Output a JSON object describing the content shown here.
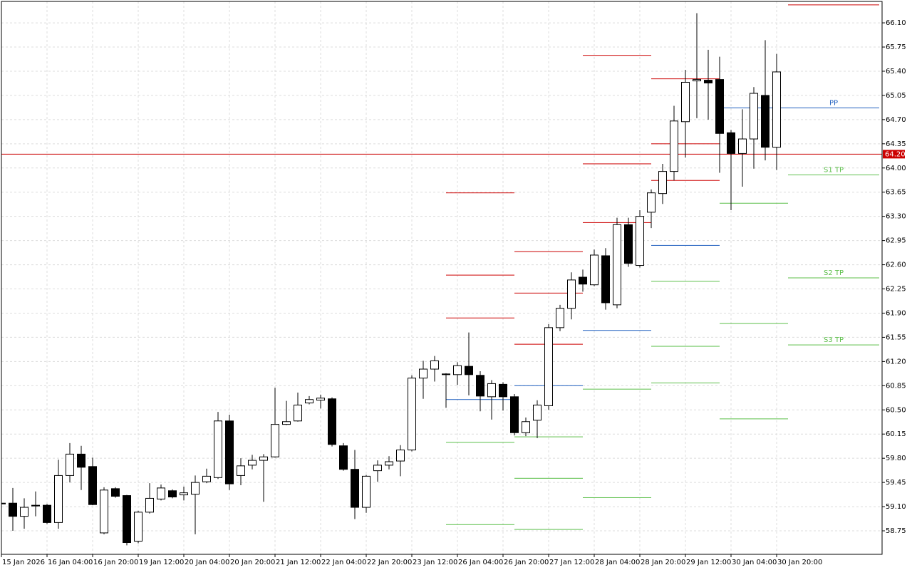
{
  "chart_data": {
    "type": "candlestick",
    "x": [
      "15 Jan 2026",
      null,
      null,
      null,
      "16 Jan 04:00",
      null,
      null,
      null,
      "16 Jan 20:00",
      null,
      null,
      null,
      "19 Jan 12:00",
      null,
      null,
      null,
      "20 Jan 04:00",
      null,
      null,
      null,
      "20 Jan 20:00",
      null,
      null,
      null,
      "21 Jan 12:00",
      null,
      null,
      null,
      "22 Jan 04:00",
      null,
      null,
      null,
      "22 Jan 20:00",
      null,
      null,
      null,
      "23 Jan 12:00",
      null,
      null,
      null,
      "26 Jan 04:00",
      null,
      null,
      null,
      "26 Jan 20:00",
      null,
      null,
      null,
      "27 Jan 12:00",
      null,
      null,
      null,
      "28 Jan 04:00",
      null,
      null,
      null,
      "28 Jan 20:00",
      null,
      null,
      null,
      "29 Jan 12:00",
      null,
      null,
      null,
      "30 Jan 04:00",
      null,
      null,
      null,
      "30 Jan 20:00",
      null,
      null,
      null,
      null,
      null,
      null,
      null,
      null,
      null
    ],
    "open": [
      59.15,
      59.15,
      58.96,
      59.11,
      59.12,
      58.87,
      59.55,
      59.86,
      59.68,
      58.72,
      59.36,
      59.26,
      58.6,
      59.02,
      59.21,
      59.33,
      59.27,
      59.28,
      59.46,
      59.52,
      60.34,
      59.55,
      59.7,
      59.77,
      59.82,
      60.29,
      60.34,
      60.6,
      60.64,
      60.66,
      59.98,
      59.64,
      59.09,
      59.62,
      59.7,
      59.76,
      59.92,
      60.96,
      61.09,
      61.02,
      61.01,
      61.13,
      61.0,
      60.69,
      60.87,
      60.69,
      60.17,
      60.35,
      60.56,
      61.69,
      61.97,
      62.42,
      62.31,
      62.73,
      62.02,
      63.18,
      62.59,
      63.36,
      63.63,
      63.95,
      64.67,
      65.26,
      65.27,
      65.28,
      64.51,
      64.21,
      64.42,
      65.05,
      64.3,
      null,
      null,
      null,
      null,
      null,
      null,
      null,
      null,
      null
    ],
    "high": [
      59.16,
      59.37,
      59.22,
      59.32,
      59.14,
      59.78,
      60.02,
      59.98,
      59.81,
      59.38,
      59.38,
      59.27,
      59.04,
      59.44,
      59.42,
      59.35,
      59.39,
      59.55,
      59.65,
      60.47,
      60.43,
      59.8,
      59.85,
      59.86,
      60.82,
      60.63,
      60.75,
      60.7,
      60.72,
      60.68,
      60.02,
      59.92,
      59.56,
      59.77,
      59.83,
      59.99,
      61.0,
      61.21,
      61.28,
      61.03,
      61.19,
      61.62,
      61.06,
      60.93,
      60.9,
      60.73,
      60.39,
      60.64,
      61.74,
      62.02,
      62.49,
      62.53,
      62.82,
      62.84,
      63.28,
      63.28,
      63.39,
      63.69,
      64.06,
      64.9,
      65.42,
      66.24,
      65.71,
      65.61,
      64.55,
      64.85,
      65.17,
      65.85,
      65.65,
      null,
      null,
      null,
      null,
      null,
      null,
      null,
      null,
      null
    ],
    "low": [
      59.13,
      58.75,
      58.78,
      58.96,
      58.85,
      58.78,
      59.45,
      59.34,
      59.12,
      58.7,
      59.23,
      58.54,
      58.57,
      59.0,
      59.19,
      59.22,
      59.19,
      58.7,
      59.44,
      59.5,
      59.34,
      59.41,
      59.64,
      59.17,
      59.81,
      60.28,
      60.33,
      60.58,
      60.52,
      59.97,
      59.62,
      58.92,
      59.01,
      59.46,
      59.64,
      59.54,
      59.9,
      60.66,
      60.91,
      60.53,
      60.86,
      60.71,
      60.48,
      60.36,
      60.49,
      60.13,
      60.12,
      60.09,
      60.5,
      61.64,
      61.81,
      62.21,
      62.29,
      61.95,
      61.97,
      62.57,
      62.56,
      63.13,
      63.48,
      63.82,
      64.15,
      64.72,
      64.7,
      63.93,
      63.39,
      63.73,
      63.99,
      64.11,
      63.97,
      null,
      null,
      null,
      null,
      null,
      null,
      null,
      null,
      null
    ],
    "close": [
      59.14,
      58.96,
      59.09,
      59.12,
      58.87,
      59.55,
      59.86,
      59.67,
      59.13,
      59.34,
      59.25,
      58.58,
      59.02,
      59.22,
      59.37,
      59.24,
      59.3,
      59.45,
      59.54,
      60.34,
      59.43,
      59.69,
      59.77,
      59.82,
      60.29,
      60.33,
      60.57,
      60.65,
      60.67,
      60.0,
      59.64,
      59.09,
      59.54,
      59.7,
      59.75,
      59.92,
      60.96,
      61.09,
      61.21,
      61.01,
      61.14,
      61.01,
      60.7,
      60.88,
      60.69,
      60.17,
      60.33,
      60.57,
      61.69,
      61.97,
      62.38,
      62.32,
      62.74,
      62.05,
      63.18,
      62.62,
      63.3,
      63.64,
      63.95,
      64.68,
      65.24,
      65.28,
      65.23,
      64.5,
      64.21,
      64.42,
      65.08,
      64.3,
      65.39,
      null,
      null,
      null,
      null,
      null,
      null,
      null,
      null,
      null
    ],
    "up_color": "#ffffff",
    "down_color": "#000000",
    "series": [
      {
        "color": "#cc0000",
        "values": [
          null,
          null,
          null,
          null,
          null,
          null,
          null,
          null,
          null,
          null,
          null,
          null,
          null,
          null,
          null,
          null,
          null,
          null,
          null,
          null,
          null,
          null,
          null,
          null,
          null,
          null,
          null,
          null,
          null,
          null,
          null,
          null,
          null,
          null,
          null,
          null,
          null,
          null,
          null,
          61.83,
          61.83,
          61.83,
          61.83,
          61.83,
          61.83,
          61.45,
          61.45,
          61.45,
          61.45,
          61.45,
          61.45,
          63.21,
          63.21,
          63.21,
          63.21,
          63.21,
          63.21,
          63.82,
          63.82,
          63.82,
          63.82,
          63.82,
          63.82,
          null,
          null,
          null,
          null,
          null,
          null,
          66.36,
          66.36,
          66.36,
          66.36,
          66.36,
          66.36,
          66.36,
          66.36,
          null
        ]
      },
      {
        "color": "#cc0000",
        "values": [
          null,
          null,
          null,
          null,
          null,
          null,
          null,
          null,
          null,
          null,
          null,
          null,
          null,
          null,
          null,
          null,
          null,
          null,
          null,
          null,
          null,
          null,
          null,
          null,
          null,
          null,
          null,
          null,
          null,
          null,
          null,
          null,
          null,
          null,
          null,
          null,
          null,
          null,
          null,
          62.45,
          62.45,
          62.45,
          62.45,
          62.45,
          62.45,
          62.19,
          62.19,
          62.19,
          62.19,
          62.19,
          62.19,
          64.06,
          64.06,
          64.06,
          64.06,
          64.06,
          64.06,
          64.35,
          64.35,
          64.35,
          64.35,
          64.35,
          64.35,
          null,
          null,
          null,
          null,
          null,
          null,
          null,
          null,
          null,
          null,
          null,
          null,
          null,
          null,
          null
        ]
      },
      {
        "color": "#cc0000",
        "values": [
          null,
          null,
          null,
          null,
          null,
          null,
          null,
          null,
          null,
          null,
          null,
          null,
          null,
          null,
          null,
          null,
          null,
          null,
          null,
          null,
          null,
          null,
          null,
          null,
          null,
          null,
          null,
          null,
          null,
          null,
          null,
          null,
          null,
          null,
          null,
          null,
          null,
          null,
          null,
          63.64,
          63.64,
          63.64,
          63.64,
          63.64,
          63.64,
          62.79,
          62.79,
          62.79,
          62.79,
          62.79,
          62.79,
          65.63,
          65.63,
          65.63,
          65.63,
          65.63,
          65.63,
          65.29,
          65.29,
          65.29,
          65.29,
          65.29,
          65.29,
          null,
          null,
          null,
          null,
          null,
          null,
          null,
          null,
          null,
          null,
          null,
          null,
          null,
          null,
          null
        ]
      },
      {
        "name": "PP",
        "color": "#1f5fbf",
        "values": [
          null,
          null,
          null,
          null,
          null,
          null,
          null,
          null,
          null,
          null,
          null,
          null,
          null,
          null,
          null,
          null,
          null,
          null,
          null,
          null,
          null,
          null,
          null,
          null,
          null,
          null,
          null,
          null,
          null,
          null,
          null,
          null,
          null,
          null,
          null,
          null,
          null,
          null,
          null,
          60.65,
          60.65,
          60.65,
          60.65,
          60.65,
          60.65,
          60.85,
          60.85,
          60.85,
          60.85,
          60.85,
          60.85,
          61.65,
          61.65,
          61.65,
          61.65,
          61.65,
          61.65,
          62.88,
          62.88,
          62.88,
          62.88,
          62.88,
          62.88,
          64.87,
          64.87,
          64.87,
          64.87,
          64.87,
          64.87,
          64.87,
          64.87,
          64.87,
          64.87,
          64.87,
          64.87,
          64.87,
          64.87,
          null
        ]
      },
      {
        "name": "S1 TP",
        "color": "#5cbf4a",
        "values": [
          null,
          null,
          null,
          null,
          null,
          null,
          null,
          null,
          null,
          null,
          null,
          null,
          null,
          null,
          null,
          null,
          null,
          null,
          null,
          null,
          null,
          null,
          null,
          null,
          null,
          null,
          null,
          null,
          null,
          null,
          null,
          null,
          null,
          null,
          null,
          null,
          null,
          null,
          null,
          60.03,
          60.03,
          60.03,
          60.03,
          60.03,
          60.03,
          60.11,
          60.11,
          60.11,
          60.11,
          60.11,
          60.11,
          60.8,
          60.8,
          60.8,
          60.8,
          60.8,
          60.8,
          62.36,
          62.36,
          62.36,
          62.36,
          62.36,
          62.36,
          63.49,
          63.49,
          63.49,
          63.49,
          63.49,
          63.49,
          63.9,
          63.9,
          63.9,
          63.9,
          63.9,
          63.9,
          63.9,
          63.9,
          null
        ]
      },
      {
        "name": "S2 TP",
        "color": "#5cbf4a",
        "values": [
          null,
          null,
          null,
          null,
          null,
          null,
          null,
          null,
          null,
          null,
          null,
          null,
          null,
          null,
          null,
          null,
          null,
          null,
          null,
          null,
          null,
          null,
          null,
          null,
          null,
          null,
          null,
          null,
          null,
          null,
          null,
          null,
          null,
          null,
          null,
          null,
          null,
          null,
          null,
          58.84,
          58.84,
          58.84,
          58.84,
          58.84,
          58.84,
          59.51,
          59.51,
          59.51,
          59.51,
          59.51,
          59.51,
          59.23,
          59.23,
          59.23,
          59.23,
          59.23,
          59.23,
          61.42,
          61.42,
          61.42,
          61.42,
          61.42,
          61.42,
          61.75,
          61.75,
          61.75,
          61.75,
          61.75,
          61.75,
          62.41,
          62.41,
          62.41,
          62.41,
          62.41,
          62.41,
          62.41,
          62.41,
          null
        ]
      },
      {
        "name": "S3 TP",
        "color": "#5cbf4a",
        "values": [
          null,
          null,
          null,
          null,
          null,
          null,
          null,
          null,
          null,
          null,
          null,
          null,
          null,
          null,
          null,
          null,
          null,
          null,
          null,
          null,
          null,
          null,
          null,
          null,
          null,
          null,
          null,
          null,
          null,
          null,
          null,
          null,
          null,
          null,
          null,
          null,
          null,
          null,
          null,
          null,
          null,
          null,
          null,
          null,
          null,
          58.77,
          58.77,
          58.77,
          58.77,
          58.77,
          58.77,
          null,
          null,
          null,
          null,
          null,
          null,
          60.89,
          60.89,
          60.89,
          60.89,
          60.89,
          60.89,
          60.37,
          60.37,
          60.37,
          60.37,
          60.37,
          60.37,
          61.44,
          61.44,
          61.44,
          61.44,
          61.44,
          61.44,
          61.44,
          61.44,
          null
        ]
      }
    ],
    "price_line": {
      "value": 64.2,
      "label": "64.20",
      "color": "#cc0000"
    },
    "ylim": [
      58.41,
      66.41
    ],
    "yticks": [
      {
        "value": 66.1,
        "label": "66.10"
      },
      65.75,
      {
        "value": 65.4,
        "label": "65.40"
      },
      65.05,
      {
        "value": 64.7,
        "label": "64.70"
      },
      64.35,
      {
        "value": 64.0,
        "label": "64.00"
      },
      63.65,
      {
        "value": 63.3,
        "label": "63.30"
      },
      62.95,
      {
        "value": 62.6,
        "label": "62.60"
      },
      62.25,
      {
        "value": 61.9,
        "label": "61.90"
      },
      61.55,
      {
        "value": 61.2,
        "label": "61.20"
      },
      60.85,
      {
        "value": 60.5,
        "label": "60.50"
      },
      60.15,
      {
        "value": 59.8,
        "label": "59.80"
      },
      59.45,
      {
        "value": 59.1,
        "label": "59.10"
      },
      58.75
    ],
    "grid": true
  }
}
